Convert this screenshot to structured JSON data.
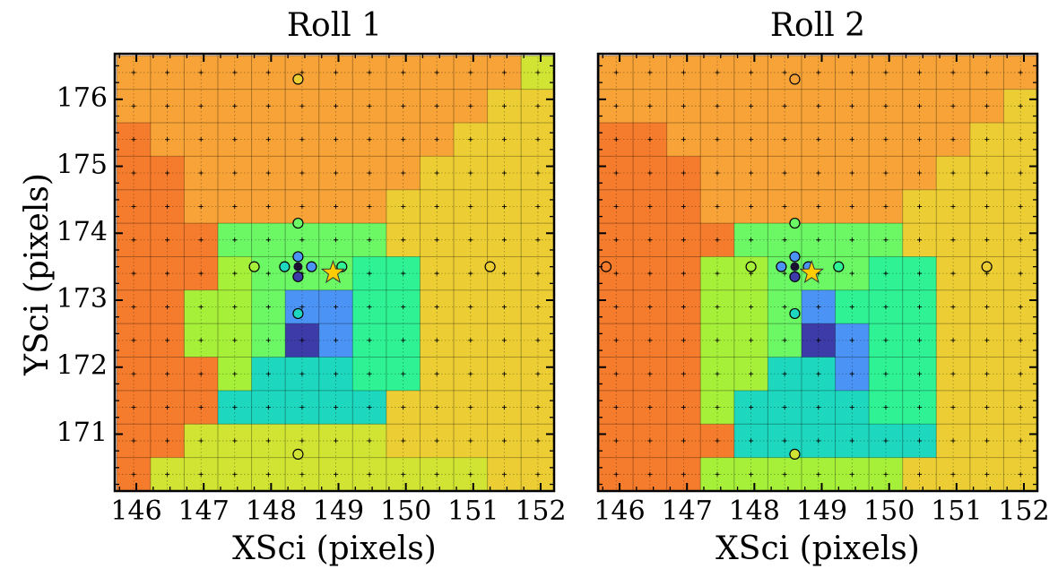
{
  "figure": {
    "ylabel": "YSci (pixels)"
  },
  "chart_data": [
    {
      "type": "heatmap",
      "title": "Roll 1",
      "xlabel": "XSci (pixels)",
      "ylabel": "YSci (pixels)",
      "xlim": [
        145.68,
        152.2
      ],
      "ylim": [
        170.15,
        176.68
      ],
      "xticks": [
        146,
        147,
        148,
        149,
        150,
        151,
        152
      ],
      "yticks": [
        171,
        172,
        173,
        174,
        175,
        176
      ],
      "cell_x0": 145.71,
      "cell_dx": 0.5,
      "cell_y_top": 176.65,
      "cell_dy": 0.5,
      "grid": true,
      "palette": {
        "A": "#f7a337",
        "O": "#f57c2c",
        "Y": "#ecce34",
        "L": "#d1e434",
        "G": "#a6f03a",
        "H": "#6cf765",
        "T": "#2ff294",
        "C": "#1ed7bf",
        "B": "#4b93f4",
        "N": "#3c3ba8"
      },
      "rows": [
        "AAAAAAAAAAAAL",
        "AAAAAAAAAAAYY",
        "OAAAAAAAAAYYY",
        "OOAAAAAAAYYYY",
        "OOAAAAAAYYYYY",
        "OOOHHHHHYYYYY",
        "OOOGHHHTTYYYY",
        "OOGGHBBTTYYYY",
        "OOGGHNBTTYYYY",
        "OOOGCCCTTYYYY",
        "OOOCCCCCYYYYY",
        "OOLLLLLLYYYYY",
        "OLLLLLLLLLLYY",
        "OLLLLLLLLLLYY",
        "LLLLLLLLLLLYY",
        "LLLLLLLLLLLLY"
      ],
      "circles": [
        {
          "x": 148.4,
          "y": 176.3,
          "color": "#ecce34"
        },
        {
          "x": 148.4,
          "y": 174.15,
          "color": "#6cf765"
        },
        {
          "x": 148.4,
          "y": 173.65,
          "color": "#4b93f4"
        },
        {
          "x": 148.2,
          "y": 173.5,
          "color": "#1ed7bf"
        },
        {
          "x": 148.6,
          "y": 173.5,
          "color": "#4b93f4"
        },
        {
          "x": 148.4,
          "y": 173.35,
          "color": "#3c3ba8"
        },
        {
          "x": 148.4,
          "y": 172.8,
          "color": "#1ed7bf"
        },
        {
          "x": 147.75,
          "y": 173.5,
          "color": "#a6f03a"
        },
        {
          "x": 149.05,
          "y": 173.5,
          "color": "#2ff294"
        },
        {
          "x": 151.25,
          "y": 173.5,
          "color": "#ecce34"
        },
        {
          "x": 148.4,
          "y": 170.7,
          "color": "#d1e434"
        }
      ],
      "center_dot": {
        "x": 148.4,
        "y": 173.5
      },
      "star": {
        "x": 148.92,
        "y": 173.41
      }
    },
    {
      "type": "heatmap",
      "title": "Roll 2",
      "xlabel": "XSci (pixels)",
      "ylabel": "",
      "xlim": [
        145.68,
        152.2
      ],
      "ylim": [
        170.15,
        176.68
      ],
      "xticks": [
        146,
        147,
        148,
        149,
        150,
        151,
        152
      ],
      "yticks": [
        171,
        172,
        173,
        174,
        175,
        176
      ],
      "cell_x0": 145.7,
      "cell_dx": 0.5,
      "cell_y_top": 176.65,
      "cell_dy": 0.5,
      "grid": true,
      "palette": {
        "A": "#f7a337",
        "O": "#f57c2c",
        "Y": "#ecce34",
        "L": "#d1e434",
        "G": "#a6f03a",
        "H": "#6cf765",
        "T": "#2ff294",
        "C": "#1ed7bf",
        "B": "#4b93f4",
        "N": "#3c3ba8"
      },
      "rows": [
        "AAAAAAAAAAAAA",
        "AAAAAAAAAAAAY",
        "OOAAAAAAAAAYY",
        "OOOAAAAAAAYYY",
        "OOOAAAAAAYYYY",
        "OOOOHHHHHYYYY",
        "OOOGGHHHTTYYY",
        "OOOGGHBTTTYYY",
        "OOOGGHNBTTYYY",
        "OOOGGCCBTTYYY",
        "OOOGCCCCTTYYY",
        "OOOOCCCCCCYYY",
        "OOOGGGGGGYYYY",
        "OOLLLLLLLLYYY",
        "OOLLLLLLLLLLY",
        "OLLLLLLLLLLLY"
      ],
      "circles": [
        {
          "x": 148.6,
          "y": 176.3,
          "color": "#f7a337"
        },
        {
          "x": 148.6,
          "y": 174.15,
          "color": "#6cf765"
        },
        {
          "x": 148.6,
          "y": 173.65,
          "color": "#4b93f4"
        },
        {
          "x": 148.4,
          "y": 173.5,
          "color": "#4b93f4"
        },
        {
          "x": 148.8,
          "y": 173.5,
          "color": "#4b93f4"
        },
        {
          "x": 148.6,
          "y": 173.35,
          "color": "#3c3ba8"
        },
        {
          "x": 148.6,
          "y": 172.8,
          "color": "#1ed7bf"
        },
        {
          "x": 147.95,
          "y": 173.5,
          "color": "#a6f03a"
        },
        {
          "x": 149.25,
          "y": 173.5,
          "color": "#2ff294"
        },
        {
          "x": 151.45,
          "y": 173.5,
          "color": "#ecce34"
        },
        {
          "x": 145.8,
          "y": 173.5,
          "color": "#f57c2c"
        },
        {
          "x": 148.6,
          "y": 170.7,
          "color": "#d1e434"
        }
      ],
      "center_dot": {
        "x": 148.6,
        "y": 173.5
      },
      "star": {
        "x": 148.85,
        "y": 173.41
      }
    }
  ]
}
